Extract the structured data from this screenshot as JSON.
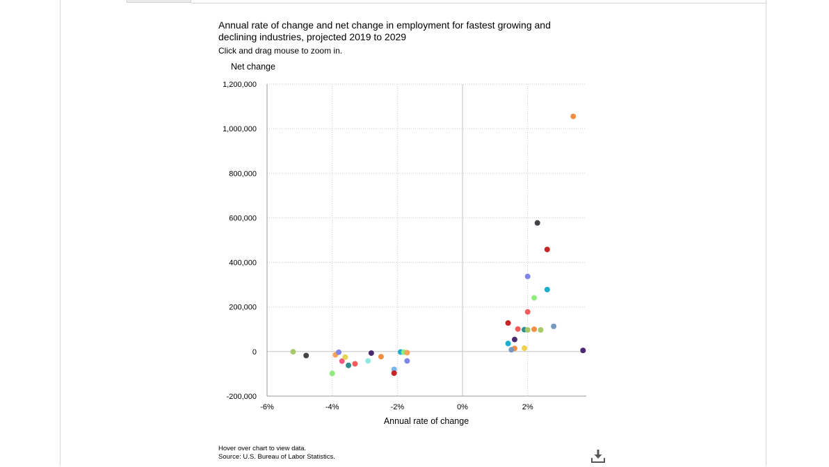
{
  "chart_data": {
    "type": "scatter",
    "title": "Annual rate of change and net change in employment for fastest growing and declining industries, projected 2019 to 2029",
    "subtitle": "Click and drag mouse to zoom in.",
    "xlabel": "Annual rate of change",
    "ylabel": "Net change",
    "xlim": [
      -6,
      3.8
    ],
    "ylim": [
      -200000,
      1200000
    ],
    "x_ticks": [
      -6,
      -4,
      -2,
      0,
      2
    ],
    "x_tick_labels": [
      "-6%",
      "-4%",
      "-2%",
      "0%",
      "2%"
    ],
    "y_ticks": [
      -200000,
      0,
      200000,
      400000,
      600000,
      800000,
      1000000,
      1200000
    ],
    "y_tick_labels": [
      "-200,000",
      "0",
      "200,000",
      "400,000",
      "600,000",
      "800,000",
      "1,000,000",
      "1,200,000"
    ],
    "grid": true,
    "legend": "none",
    "points": [
      {
        "x": 3.4,
        "y": 1055000,
        "color": "#f28f43"
      },
      {
        "x": 2.3,
        "y": 577000,
        "color": "#434348"
      },
      {
        "x": 2.6,
        "y": 458000,
        "color": "#c42525"
      },
      {
        "x": 2.0,
        "y": 337000,
        "color": "#8085e9"
      },
      {
        "x": 2.6,
        "y": 278000,
        "color": "#1aadce"
      },
      {
        "x": 2.2,
        "y": 241000,
        "color": "#90ed7d"
      },
      {
        "x": 2.0,
        "y": 178000,
        "color": "#f45b5b"
      },
      {
        "x": 1.4,
        "y": 128000,
        "color": "#c42525"
      },
      {
        "x": 2.8,
        "y": 113000,
        "color": "#7798bf"
      },
      {
        "x": 1.7,
        "y": 101000,
        "color": "#f45b5b"
      },
      {
        "x": 2.2,
        "y": 100000,
        "color": "#f28f43"
      },
      {
        "x": 1.9,
        "y": 98000,
        "color": "#2b908f"
      },
      {
        "x": 2.0,
        "y": 97000,
        "color": "#a6c96a"
      },
      {
        "x": 2.4,
        "y": 97000,
        "color": "#a6c96a"
      },
      {
        "x": 1.6,
        "y": 54000,
        "color": "#492970"
      },
      {
        "x": 1.4,
        "y": 36000,
        "color": "#1aadce"
      },
      {
        "x": 1.9,
        "y": 15000,
        "color": "#f1d14c"
      },
      {
        "x": 1.6,
        "y": 14000,
        "color": "#f28f43"
      },
      {
        "x": 1.5,
        "y": 8000,
        "color": "#7798bf"
      },
      {
        "x": 3.7,
        "y": 5000,
        "color": "#492970"
      },
      {
        "x": -5.2,
        "y": -1000,
        "color": "#a6c96a"
      },
      {
        "x": -4.8,
        "y": -18000,
        "color": "#434348"
      },
      {
        "x": -4.0,
        "y": -98000,
        "color": "#90ed7d"
      },
      {
        "x": -3.9,
        "y": -15000,
        "color": "#f7a35c"
      },
      {
        "x": -3.8,
        "y": -3000,
        "color": "#8085e9"
      },
      {
        "x": -3.7,
        "y": -43000,
        "color": "#f15c80"
      },
      {
        "x": -3.6,
        "y": -25000,
        "color": "#e4d354"
      },
      {
        "x": -3.5,
        "y": -62000,
        "color": "#2b908f"
      },
      {
        "x": -3.3,
        "y": -55000,
        "color": "#f45b5b"
      },
      {
        "x": -2.9,
        "y": -42000,
        "color": "#91e8e1"
      },
      {
        "x": -2.8,
        "y": -7000,
        "color": "#492970"
      },
      {
        "x": -2.5,
        "y": -23000,
        "color": "#f28f43"
      },
      {
        "x": -2.1,
        "y": -80000,
        "color": "#7cb5ec"
      },
      {
        "x": -2.1,
        "y": -97000,
        "color": "#c42525"
      },
      {
        "x": -1.9,
        "y": -2000,
        "color": "#1aadce"
      },
      {
        "x": -1.8,
        "y": -3000,
        "color": "#90ed7d"
      },
      {
        "x": -1.7,
        "y": -5000,
        "color": "#f7a35c"
      },
      {
        "x": -1.7,
        "y": -42000,
        "color": "#8085e9"
      }
    ]
  },
  "footer": {
    "hover_note": "Hover over chart to view data.",
    "source": "Source: U.S. Bureau of Labor Statistics."
  },
  "icons": {
    "download": "download-icon"
  }
}
